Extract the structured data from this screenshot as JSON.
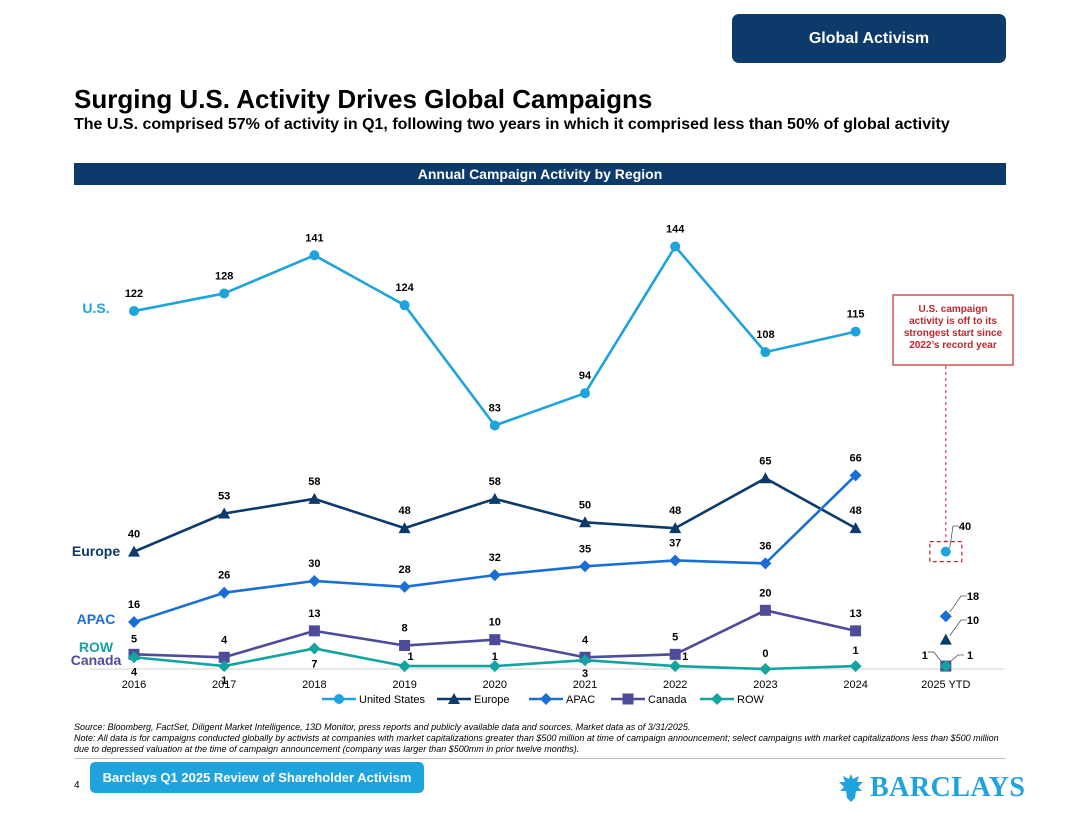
{
  "header": {
    "section_tag": "Global Activism"
  },
  "title": "Surging U.S. Activity Drives Global Campaigns",
  "subtitle": "The U.S. comprised 57% of activity in Q1, following two years in which it comprised less than 50% of global activity",
  "band_title": "Annual Campaign Activity by Region",
  "chart_data": {
    "type": "line",
    "title": "Annual Campaign Activity by Region",
    "categories": [
      "2016",
      "2017",
      "2018",
      "2019",
      "2020",
      "2021",
      "2022",
      "2023",
      "2024",
      "2025 YTD"
    ],
    "series": [
      {
        "name": "United States",
        "short": "U.S.",
        "color": "#1fa3dd",
        "marker": "circle",
        "values": [
          122,
          128,
          141,
          124,
          83,
          94,
          144,
          108,
          115,
          40
        ],
        "value_labels": [
          "122",
          "128",
          "141",
          "124",
          "83",
          "94",
          "144",
          "108",
          "115",
          "40"
        ]
      },
      {
        "name": "Europe",
        "short": "Europe",
        "color": "#0b3a6b",
        "marker": "triangle",
        "values": [
          40,
          53,
          58,
          48,
          58,
          50,
          48,
          65,
          48,
          10
        ],
        "value_labels": [
          "40",
          "53",
          "58",
          "48",
          "58",
          "50",
          "48",
          "65",
          "48",
          "10"
        ]
      },
      {
        "name": "APAC",
        "short": "APAC",
        "color": "#1a6fd6",
        "marker": "diamond",
        "values": [
          16,
          26,
          30,
          28,
          32,
          35,
          37,
          36,
          66,
          18
        ],
        "value_labels": [
          "16",
          "26",
          "30",
          "28",
          "32",
          "35",
          "37",
          "36",
          "66",
          "18"
        ]
      },
      {
        "name": "Canada",
        "short": "Canada",
        "color": "#4e4c9a",
        "marker": "square",
        "values": [
          5,
          4,
          13,
          8,
          10,
          4,
          5,
          20,
          13,
          1
        ],
        "value_labels": [
          "5",
          "4",
          "13",
          "8",
          "10",
          "4",
          "5",
          "20",
          "13",
          "1"
        ]
      },
      {
        "name": "ROW",
        "short": "ROW",
        "color": "#13a3a0",
        "marker": "diamond",
        "values": [
          4,
          1,
          7,
          1,
          1,
          3,
          1,
          0,
          1,
          1
        ],
        "value_labels": [
          "4",
          "1",
          "7",
          "1",
          "1",
          "3",
          "1",
          "0",
          "1",
          "1"
        ]
      }
    ],
    "callout": "U.S. campaign activity is off to its strongest start since 2022’s record year",
    "legend_position": "bottom"
  },
  "footnotes": {
    "source": "Source: Bloomberg, FactSet, Diligent Market Intelligence, 13D Monitor, press reports and publicly available data and sources. Market data as of 3/31/2025.",
    "note": "Note: All data is for campaigns conducted globally by activists at companies with market capitalizations greater than $500 million at time of campaign announcement; select campaigns with market capitalizations less than $500 million due to depressed valuation at the time of campaign announcement (company was larger than $500mm in prior twelve months)."
  },
  "footer": {
    "page_number": "4",
    "report_title": "Barclays Q1 2025 Review of Shareholder Activism",
    "brand": "BARCLAYS"
  }
}
